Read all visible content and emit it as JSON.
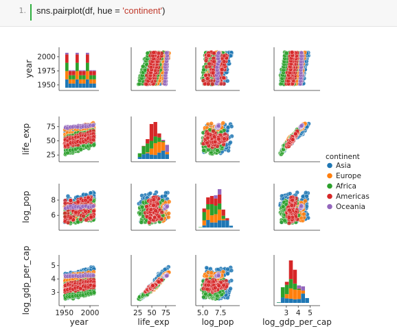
{
  "cell": {
    "line_number": "1.",
    "code_prefix": "sns.pairplot(df, hue = ",
    "code_string": "'continent'",
    "code_suffix": ")"
  },
  "chart_data": {
    "type": "scatter",
    "variables": [
      "year",
      "life_exp",
      "log_pop",
      "log_gdp_per_cap"
    ],
    "axis_labels": [
      "year",
      "life_exp",
      "log_pop",
      "log_gdp_per_cap"
    ],
    "ticks": {
      "year": [
        1950,
        1975,
        2000
      ],
      "year_bottom": [
        1950,
        2000
      ],
      "life_exp": [
        25,
        50,
        75
      ],
      "log_pop": [
        6,
        8
      ],
      "log_pop_bottom": [
        5.0,
        7.5
      ],
      "log_gdp_per_cap": [
        3,
        4,
        5
      ]
    },
    "ranges": {
      "year": [
        1945,
        2012
      ],
      "life_exp": [
        18,
        88
      ],
      "log_pop": [
        4.4,
        9.8
      ],
      "log_gdp_per_cap": [
        2.2,
        5.6
      ]
    },
    "legend": {
      "title": "continent",
      "placement": "right",
      "entries": [
        {
          "name": "Asia",
          "color": "#1f77b4"
        },
        {
          "name": "Europe",
          "color": "#ff7f0e"
        },
        {
          "name": "Africa",
          "color": "#2ca02c"
        },
        {
          "name": "Americas",
          "color": "#d62728"
        },
        {
          "name": "Oceania",
          "color": "#9467bd"
        }
      ]
    },
    "groups": [
      {
        "continent": "Asia",
        "year": [
          1952,
          2007
        ],
        "life_exp": [
          28,
          83
        ],
        "log_pop": [
          5.0,
          9.1
        ],
        "log_gdp_per_cap": [
          2.5,
          5.1
        ]
      },
      {
        "continent": "Europe",
        "year": [
          1952,
          2007
        ],
        "life_exp": [
          43,
          82
        ],
        "log_pop": [
          5.2,
          7.9
        ],
        "log_gdp_per_cap": [
          2.9,
          4.7
        ]
      },
      {
        "continent": "Africa",
        "year": [
          1952,
          2007
        ],
        "life_exp": [
          24,
          76
        ],
        "log_pop": [
          4.8,
          8.1
        ],
        "log_gdp_per_cap": [
          2.4,
          4.3
        ]
      },
      {
        "continent": "Americas",
        "year": [
          1952,
          2007
        ],
        "life_exp": [
          38,
          80
        ],
        "log_pop": [
          5.0,
          8.5
        ],
        "log_gdp_per_cap": [
          3.0,
          4.6
        ]
      },
      {
        "continent": "Oceania",
        "year": [
          1952,
          2007
        ],
        "life_exp": [
          69,
          81
        ],
        "log_pop": [
          6.9,
          7.3
        ],
        "log_gdp_per_cap": [
          4.0,
          4.5
        ]
      }
    ]
  }
}
